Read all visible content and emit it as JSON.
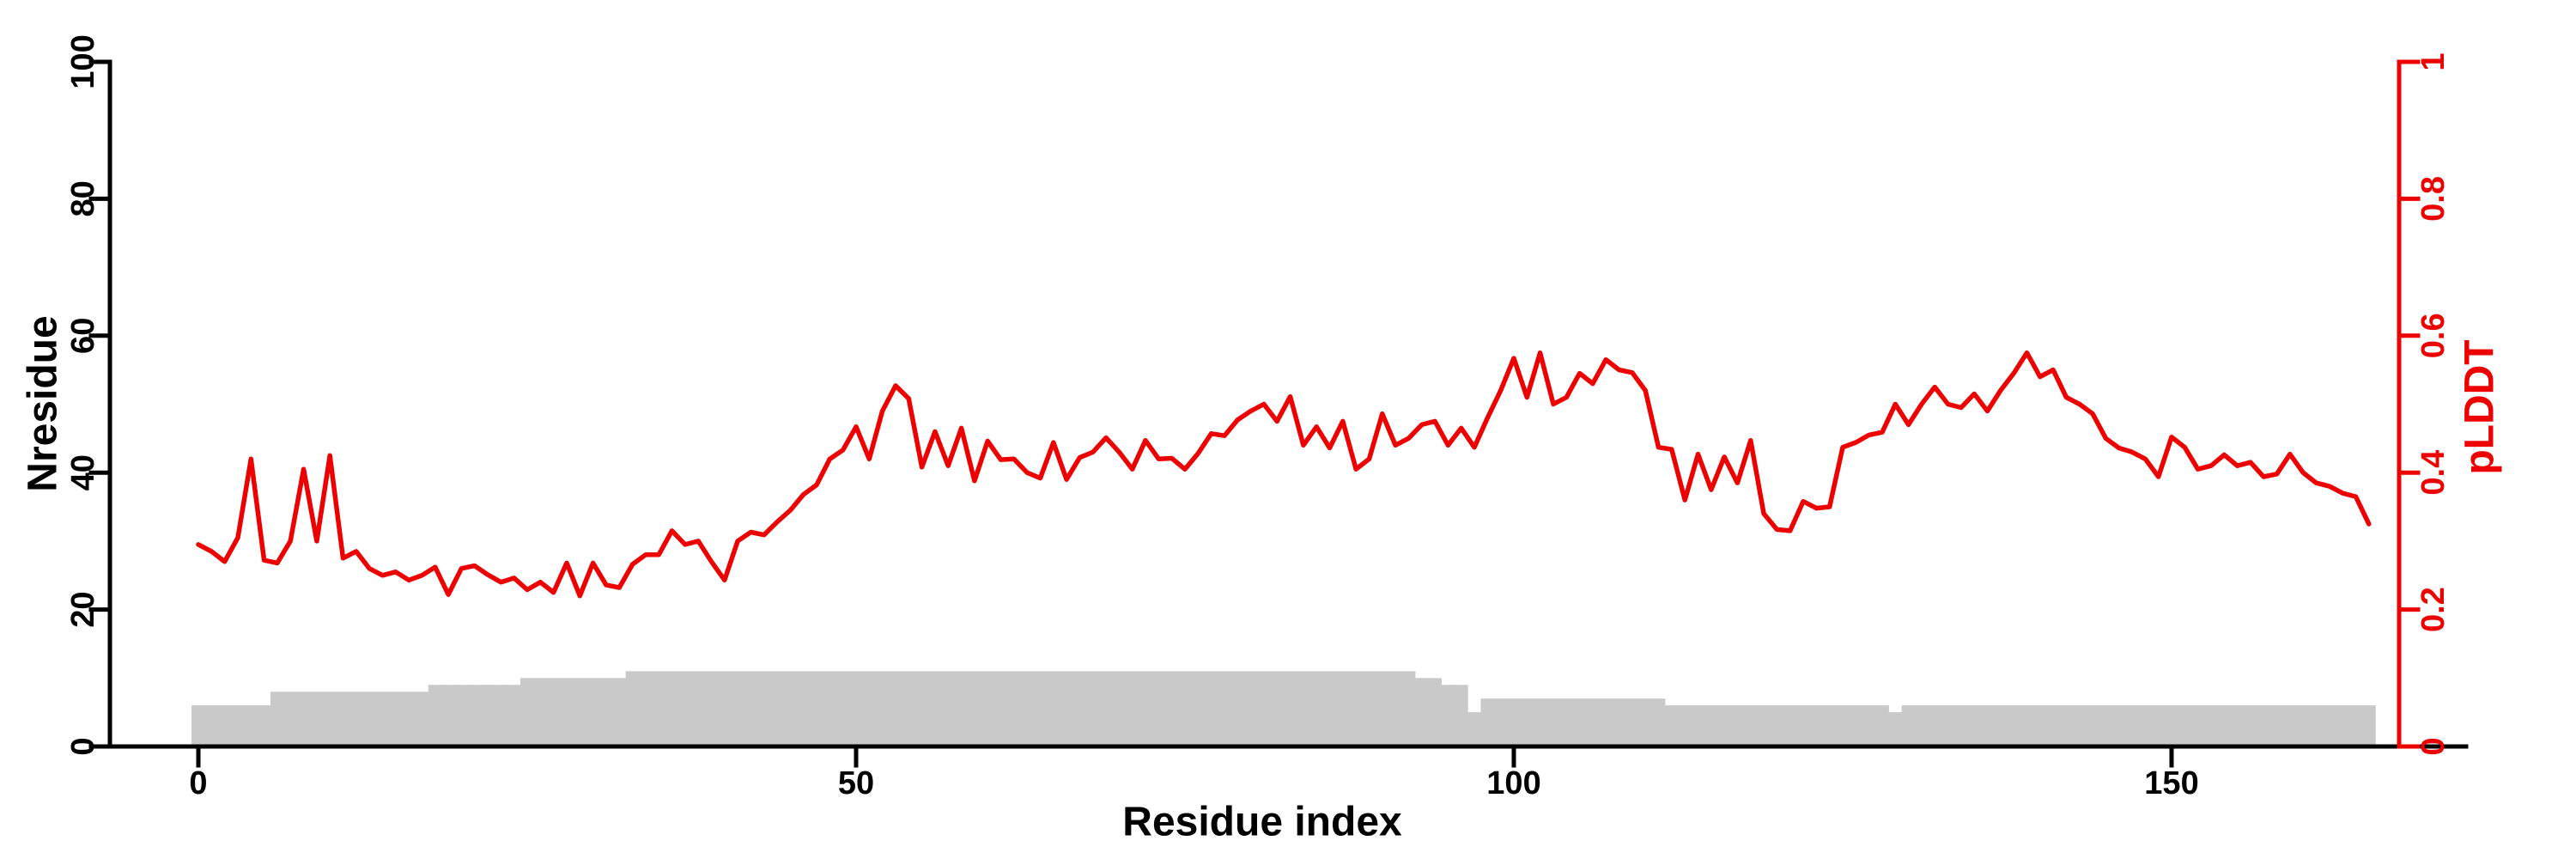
{
  "page": {
    "background": "#ffffff"
  },
  "chart_data": {
    "type": "line+bar",
    "title": "",
    "xlabel": "Residue index",
    "grid": false,
    "legend": "none",
    "x_start": 0,
    "x_end": 165,
    "x_ticks": [
      0,
      50,
      100,
      150
    ],
    "x_tick_labels": [
      "0",
      "50",
      "100",
      "150"
    ],
    "axes": {
      "left": {
        "label": "Nresidue",
        "range": [
          0,
          100
        ],
        "ticks": [
          0,
          20,
          40,
          60,
          80,
          100
        ],
        "tick_labels": [
          "0",
          "20",
          "40",
          "60",
          "80",
          "100"
        ],
        "color": "#000000"
      },
      "right": {
        "label": "pLDDT",
        "range": [
          0,
          1
        ],
        "ticks": [
          0,
          0.2,
          0.4,
          0.6,
          0.8,
          1
        ],
        "tick_labels": [
          "0",
          "0.2",
          "0.4",
          "0.6",
          "0.8",
          "1"
        ],
        "color": "#ed0000"
      }
    },
    "series": [
      {
        "name": "Nresidue",
        "type": "bar",
        "axis": "left",
        "color": "#c9c9c9",
        "x_start": 0,
        "values": [
          6,
          6,
          6,
          6,
          6,
          6,
          8,
          8,
          8,
          8,
          8,
          8,
          8,
          8,
          8,
          8,
          8,
          8,
          9,
          9,
          9,
          9,
          9,
          9,
          9,
          10,
          10,
          10,
          10,
          10,
          10,
          10,
          10,
          11,
          11,
          11,
          11,
          11,
          11,
          11,
          11,
          11,
          11,
          11,
          11,
          11,
          11,
          11,
          11,
          11,
          11,
          11,
          11,
          11,
          11,
          11,
          11,
          11,
          11,
          11,
          11,
          11,
          11,
          11,
          11,
          11,
          11,
          11,
          11,
          11,
          11,
          11,
          11,
          11,
          11,
          11,
          11,
          11,
          11,
          11,
          11,
          11,
          11,
          11,
          11,
          11,
          11,
          11,
          11,
          11,
          11,
          11,
          11,
          10,
          10,
          9,
          9,
          5,
          7,
          7,
          7,
          7,
          7,
          7,
          7,
          7,
          7,
          7,
          7,
          7,
          7,
          7,
          6,
          6,
          6,
          6,
          6,
          6,
          6,
          6,
          6,
          6,
          6,
          6,
          6,
          6,
          6,
          6,
          6,
          5,
          6,
          6,
          6,
          6,
          6,
          6,
          6,
          6,
          6,
          6,
          6,
          6,
          6,
          6,
          6,
          6,
          6,
          6,
          6,
          6,
          6,
          6,
          6,
          6,
          6,
          6,
          6,
          6,
          6,
          6,
          6,
          6,
          6,
          6,
          6,
          6
        ]
      },
      {
        "name": "pLDDT",
        "type": "line",
        "axis": "right",
        "color": "#ed0000",
        "x_start": 0,
        "values": [
          0.295,
          0.285,
          0.27,
          0.305,
          0.42,
          0.272,
          0.268,
          0.3,
          0.405,
          0.3,
          0.425,
          0.275,
          0.285,
          0.26,
          0.25,
          0.255,
          0.243,
          0.25,
          0.262,
          0.222,
          0.26,
          0.264,
          0.251,
          0.24,
          0.246,
          0.229,
          0.24,
          0.225,
          0.268,
          0.22,
          0.268,
          0.236,
          0.232,
          0.266,
          0.28,
          0.28,
          0.315,
          0.295,
          0.3,
          0.27,
          0.243,
          0.3,
          0.313,
          0.309,
          0.328,
          0.345,
          0.368,
          0.382,
          0.42,
          0.433,
          0.467,
          0.42,
          0.49,
          0.527,
          0.508,
          0.408,
          0.46,
          0.41,
          0.465,
          0.388,
          0.446,
          0.419,
          0.42,
          0.4,
          0.392,
          0.444,
          0.39,
          0.422,
          0.43,
          0.451,
          0.43,
          0.405,
          0.447,
          0.42,
          0.421,
          0.405,
          0.428,
          0.457,
          0.454,
          0.477,
          0.49,
          0.5,
          0.475,
          0.511,
          0.44,
          0.467,
          0.436,
          0.475,
          0.405,
          0.42,
          0.486,
          0.44,
          0.45,
          0.47,
          0.475,
          0.44,
          0.465,
          0.437,
          0.48,
          0.52,
          0.567,
          0.51,
          0.575,
          0.5,
          0.51,
          0.545,
          0.53,
          0.565,
          0.55,
          0.546,
          0.52,
          0.437,
          0.434,
          0.36,
          0.427,
          0.375,
          0.423,
          0.385,
          0.447,
          0.34,
          0.317,
          0.315,
          0.358,
          0.348,
          0.35,
          0.437,
          0.444,
          0.455,
          0.459,
          0.5,
          0.47,
          0.5,
          0.525,
          0.5,
          0.495,
          0.515,
          0.49,
          0.52,
          0.545,
          0.575,
          0.54,
          0.55,
          0.51,
          0.5,
          0.486,
          0.45,
          0.436,
          0.43,
          0.42,
          0.394,
          0.452,
          0.437,
          0.405,
          0.41,
          0.426,
          0.41,
          0.415,
          0.394,
          0.398,
          0.427,
          0.4,
          0.385,
          0.38,
          0.37,
          0.365,
          0.325
        ]
      }
    ]
  }
}
